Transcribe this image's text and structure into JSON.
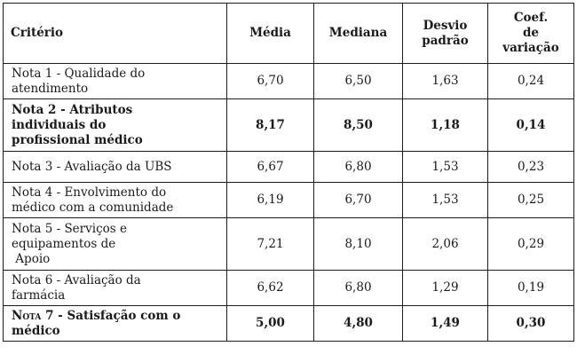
{
  "table": {
    "headers": {
      "criterio": "Critério",
      "media": "Média",
      "mediana": "Mediana",
      "desvio_line1": "Desvio",
      "desvio_line2": "padrão",
      "coef_line1": "Coef.",
      "coef_line2": "de",
      "coef_line3": "variação"
    },
    "rows": [
      {
        "line1": "Nota 1 - Qualidade do",
        "line2": "atendimento",
        "media": "6,70",
        "mediana": "6,50",
        "desvio": "1,63",
        "coef": "0,24"
      },
      {
        "line1": "Nota 2 - Atributos",
        "line2": "individuais do",
        "line3": "profissional médico",
        "media": "8,17",
        "mediana": "8,50",
        "desvio": "1,18",
        "coef": "0,14"
      },
      {
        "line1": "Nota 3 - Avaliação da UBS",
        "media": "6,67",
        "mediana": "6,80",
        "desvio": "1,53",
        "coef": "0,23"
      },
      {
        "line1": "Nota 4 - Envolvimento do",
        "line2": "médico com a comunidade",
        "media": "6,19",
        "mediana": "6,70",
        "desvio": "1,53",
        "coef": "0,25"
      },
      {
        "line1": "Nota 5 - Serviços e",
        "line2": "equipamentos de",
        "line3": "Apoio",
        "media": "7,21",
        "mediana": "8,10",
        "desvio": "2,06",
        "coef": "0,29"
      },
      {
        "line1": "Nota 6 - Avaliação da",
        "line2": "farmácia",
        "media": "6,62",
        "mediana": "6,80",
        "desvio": "1,29",
        "coef": "0,19"
      },
      {
        "line1_prefix": "Nota",
        "line1_rest": " 7 - Satisfação com o",
        "line2": "médico",
        "media": "5,00",
        "mediana": "4,80",
        "desvio": "1,49",
        "coef": "0,30"
      }
    ]
  }
}
